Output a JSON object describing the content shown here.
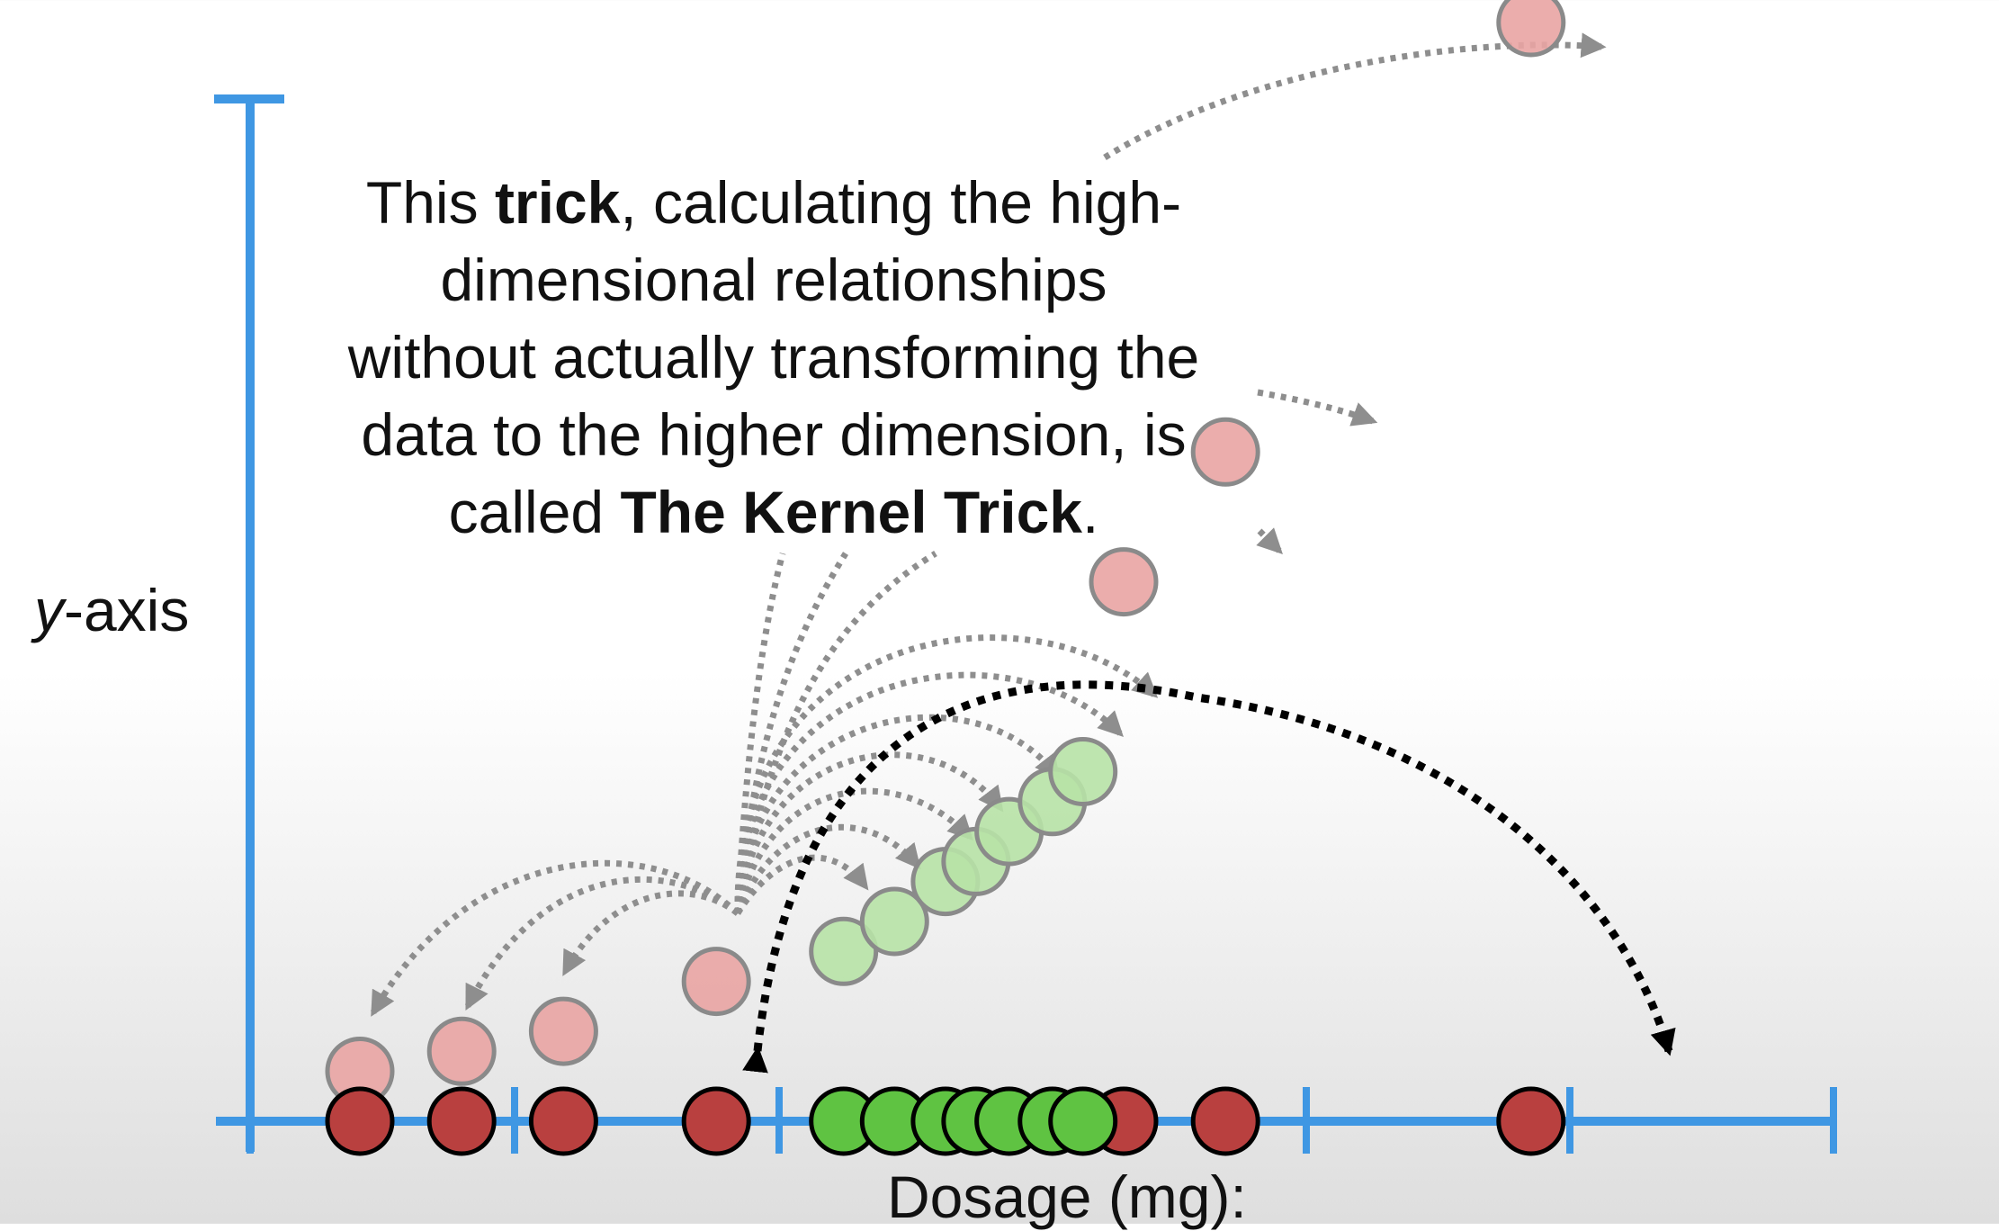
{
  "caption": {
    "line1_pre": "This ",
    "line1_bold": "trick",
    "line1_post": ", calculating the high-",
    "line2": "dimensional relationships",
    "line3": "without actually transforming the",
    "line4": "data to the higher dimension, is",
    "line5_pre": "called ",
    "line5_bold": "The Kernel Trick",
    "line5_post": "."
  },
  "axes": {
    "y_label_var": "y",
    "y_label_rest": "-axis",
    "x_label": "Dosage (mg):"
  },
  "colors": {
    "axis": "#3f97e3",
    "red_point": "#b9403f",
    "pink_point": "#e9a4a3",
    "green_point": "#5fc342",
    "light_green_point": "#b7e2a6",
    "gray_arrow": "#8e8e8e",
    "black_arrow": "#000000"
  },
  "chart_data": {
    "type": "scatter",
    "series": [
      {
        "values": [
          {
            "x": 1,
            "y": 0
          },
          {
            "x": 1.4,
            "y": 0
          },
          {
            "x": 1.8,
            "y": 0
          },
          {
            "x": 2.4,
            "y": 0
          },
          {
            "x": 4.0,
            "y": 0
          },
          {
            "x": 4.4,
            "y": 0
          },
          {
            "x": 5.6,
            "y": 0
          }
        ]
      },
      {
        "values": [
          {
            "x": 2.9,
            "y": 0
          },
          {
            "x": 3.1,
            "y": 0
          },
          {
            "x": 3.3,
            "y": 0
          },
          {
            "x": 3.42,
            "y": 0
          },
          {
            "x": 3.55,
            "y": 0
          },
          {
            "x": 3.72,
            "y": 0
          },
          {
            "x": 3.84,
            "y": 0
          }
        ]
      },
      {
        "values": [
          {
            "x": 1,
            "y": 0.05
          },
          {
            "x": 1.4,
            "y": 0.07
          },
          {
            "x": 1.8,
            "y": 0.09
          },
          {
            "x": 2.4,
            "y": 0.14
          },
          {
            "x": 4.0,
            "y": 0.54
          },
          {
            "x": 4.4,
            "y": 0.67
          },
          {
            "x": 5.6,
            "y": 1.1
          }
        ]
      },
      {
        "values": [
          {
            "x": 2.9,
            "y": 0.17
          },
          {
            "x": 3.1,
            "y": 0.2
          },
          {
            "x": 3.3,
            "y": 0.24
          },
          {
            "x": 3.42,
            "y": 0.26
          },
          {
            "x": 3.55,
            "y": 0.29
          },
          {
            "x": 3.72,
            "y": 0.32
          },
          {
            "x": 3.84,
            "y": 0.35
          }
        ]
      }
    ]
  }
}
